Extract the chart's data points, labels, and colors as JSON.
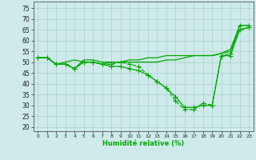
{
  "xlabel": "Humidité relative (%)",
  "xlim": [
    -0.5,
    23.5
  ],
  "ylim": [
    18,
    78
  ],
  "yticks": [
    20,
    25,
    30,
    35,
    40,
    45,
    50,
    55,
    60,
    65,
    70,
    75
  ],
  "xticks": [
    0,
    1,
    2,
    3,
    4,
    5,
    6,
    7,
    8,
    9,
    10,
    11,
    12,
    13,
    14,
    15,
    16,
    17,
    18,
    19,
    20,
    21,
    22,
    23
  ],
  "bg_color": "#ceeaea",
  "grid_color": "#aacfcf",
  "line_color": "#00aa00",
  "line_width": 0.9,
  "marker": "+",
  "marker_size": 4,
  "series": [
    {
      "y": [
        52,
        52,
        49,
        50,
        51,
        50,
        50,
        49,
        50,
        50,
        51,
        51,
        52,
        52,
        53,
        53,
        53,
        53,
        53,
        53,
        54,
        56,
        67,
        67
      ],
      "ls": "-",
      "marker_every": null
    },
    {
      "y": [
        52,
        52,
        49,
        49,
        47,
        50,
        50,
        49,
        49,
        50,
        49,
        48,
        44,
        41,
        38,
        32,
        28,
        28,
        31,
        30,
        53,
        54,
        67,
        67
      ],
      "ls": "--",
      "marker_every": 1
    },
    {
      "y": [
        52,
        52,
        49,
        49,
        47,
        50,
        50,
        49,
        48,
        48,
        47,
        46,
        44,
        41,
        38,
        34,
        29,
        29,
        30,
        30,
        53,
        53,
        65,
        66
      ],
      "ls": "-",
      "marker_every": 1
    },
    {
      "y": [
        52,
        52,
        49,
        49,
        47,
        51,
        51,
        50,
        50,
        50,
        50,
        50,
        50,
        50,
        51,
        51,
        52,
        53,
        53,
        53,
        54,
        55,
        65,
        66
      ],
      "ls": "-",
      "marker_every": null
    }
  ]
}
